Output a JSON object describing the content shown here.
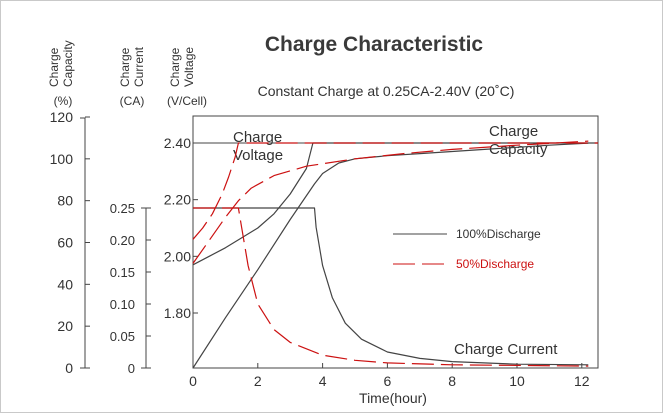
{
  "chart_data": {
    "type": "line",
    "title": "Charge Characteristic",
    "subtitle": "Constant Charge at 0.25CA-2.40V  (20˚C)",
    "xlabel": "Time(hour)",
    "xlim": [
      0,
      12.5
    ],
    "x_ticks": [
      "0",
      "2",
      "4",
      "6",
      "8",
      "10",
      "12"
    ],
    "axes": {
      "capacity": {
        "label_lines": [
          "Charge",
          "Capacity"
        ],
        "unit": "(%)",
        "range": [
          0,
          120
        ],
        "ticks": [
          "120",
          "100",
          "80",
          "60",
          "40",
          "20",
          "0"
        ]
      },
      "current": {
        "label_lines": [
          "Charge",
          "Current"
        ],
        "unit": "(CA)",
        "range": [
          0,
          0.25
        ],
        "ticks": [
          "0.25",
          "0.20",
          "0.15",
          "0.10",
          "0.05",
          "0"
        ]
      },
      "voltage": {
        "label_lines": [
          "Charge",
          "Voltage"
        ],
        "unit": "(V/Cell)",
        "range": [
          1.6,
          2.5
        ],
        "ticks": [
          "2.40",
          "2.20",
          "2.00",
          "1.80"
        ]
      }
    },
    "annotations": {
      "voltage": [
        "Charge",
        "Voltage"
      ],
      "capacity": [
        "Charge",
        "Capacity"
      ],
      "current": "Charge Current"
    },
    "legend": [
      {
        "name": "100%Discharge",
        "color": "#444444",
        "style": "solid"
      },
      {
        "name": "50%Discharge",
        "color": "#cc1111",
        "style": "dashed"
      }
    ],
    "series": [
      {
        "name": "100%Discharge",
        "quantity": "voltage",
        "axis": "voltage",
        "x": [
          0,
          0.5,
          1,
          1.5,
          2,
          2.5,
          3,
          3.5,
          3.7,
          12.5
        ],
        "y": [
          1.97,
          2.0,
          2.03,
          2.065,
          2.1,
          2.15,
          2.22,
          2.31,
          2.4,
          2.4
        ]
      },
      {
        "name": "100%Discharge",
        "quantity": "current",
        "axis": "current",
        "x": [
          0,
          3.75,
          3.8,
          4.0,
          4.3,
          4.7,
          5.2,
          6.0,
          7.0,
          8.0,
          10.0,
          12.2
        ],
        "y": [
          0.25,
          0.25,
          0.22,
          0.16,
          0.11,
          0.07,
          0.045,
          0.025,
          0.015,
          0.01,
          0.006,
          0.005
        ]
      },
      {
        "name": "100%Discharge",
        "quantity": "capacity",
        "axis": "capacity",
        "x": [
          0,
          1,
          2,
          3,
          3.75,
          4,
          4.5,
          5,
          6,
          7,
          8,
          9,
          10,
          11,
          12.2
        ],
        "y": [
          0,
          24,
          47,
          71,
          88,
          93,
          98,
          100,
          101.5,
          102.5,
          103.5,
          104.5,
          105.5,
          106.5,
          107.5
        ]
      },
      {
        "name": "50%Discharge",
        "quantity": "voltage",
        "axis": "voltage",
        "x": [
          0,
          0.3,
          0.6,
          0.9,
          1.1,
          1.3,
          1.4,
          12.5
        ],
        "y": [
          2.06,
          2.1,
          2.15,
          2.22,
          2.28,
          2.35,
          2.4,
          2.4
        ]
      },
      {
        "name": "50%Discharge",
        "quantity": "current",
        "axis": "current",
        "x": [
          0,
          1.4,
          1.5,
          1.7,
          2.0,
          2.5,
          3.0,
          4.0,
          5.0,
          6.0,
          8.0,
          10.0,
          12.2
        ],
        "y": [
          0.25,
          0.25,
          0.22,
          0.16,
          0.1,
          0.06,
          0.04,
          0.02,
          0.012,
          0.008,
          0.005,
          0.004,
          0.003
        ]
      },
      {
        "name": "50%Discharge",
        "quantity": "capacity",
        "axis": "capacity",
        "x": [
          0,
          0.5,
          1,
          1.4,
          1.8,
          2.5,
          3.5,
          5,
          6.5,
          8,
          10,
          12.2
        ],
        "y": [
          50,
          61,
          72,
          80,
          86,
          92,
          96.5,
          100,
          102.5,
          104.5,
          106.5,
          108.5
        ]
      }
    ]
  }
}
